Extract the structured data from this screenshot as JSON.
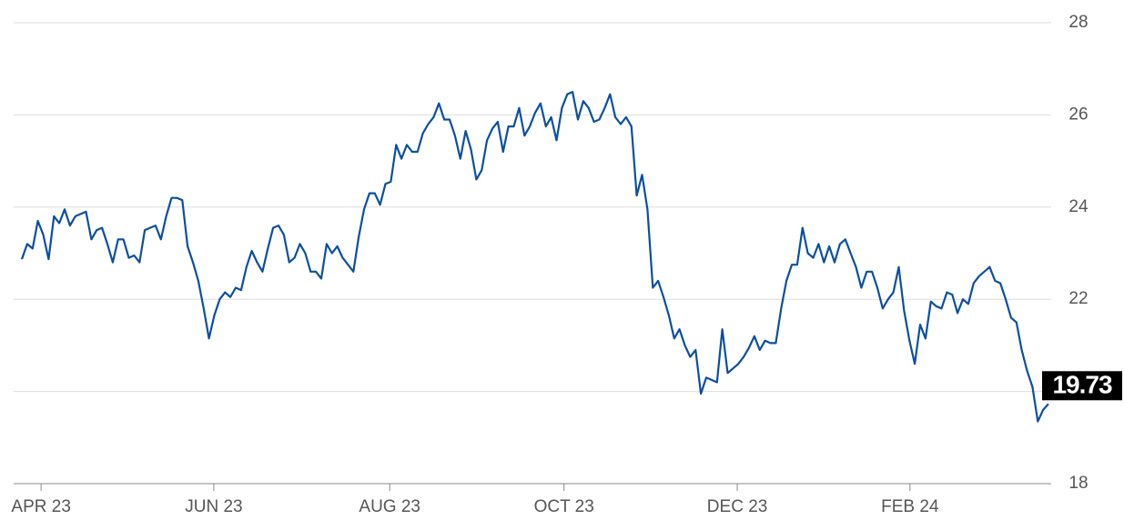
{
  "chart_data": {
    "type": "line",
    "color": "#0a4fa0",
    "values": [
      22.87,
      23.2,
      23.1,
      23.7,
      23.4,
      22.87,
      23.8,
      23.65,
      23.95,
      23.6,
      23.8,
      23.85,
      23.9,
      23.3,
      23.5,
      23.55,
      23.2,
      22.8,
      23.3,
      23.3,
      22.9,
      22.95,
      22.8,
      23.5,
      23.55,
      23.6,
      23.3,
      23.8,
      24.2,
      24.2,
      24.15,
      23.15,
      22.8,
      22.4,
      21.8,
      21.15,
      21.65,
      22.0,
      22.15,
      22.05,
      22.25,
      22.2,
      22.7,
      23.05,
      22.8,
      22.6,
      23.1,
      23.55,
      23.6,
      23.4,
      22.8,
      22.9,
      23.2,
      23.0,
      22.6,
      22.6,
      22.45,
      23.2,
      23.0,
      23.15,
      22.9,
      22.75,
      22.6,
      23.35,
      23.95,
      24.3,
      24.3,
      24.05,
      24.5,
      24.55,
      25.35,
      25.05,
      25.35,
      25.2,
      25.2,
      25.6,
      25.8,
      25.95,
      26.25,
      25.9,
      25.9,
      25.55,
      25.05,
      25.65,
      25.25,
      24.6,
      24.8,
      25.45,
      25.7,
      25.85,
      25.2,
      25.75,
      25.75,
      26.15,
      25.55,
      25.75,
      26.05,
      26.25,
      25.75,
      25.95,
      25.45,
      26.15,
      26.45,
      26.5,
      25.9,
      26.3,
      26.15,
      25.85,
      25.9,
      26.15,
      26.45,
      25.95,
      25.8,
      25.95,
      25.75,
      24.25,
      24.7,
      23.95,
      22.25,
      22.4,
      22.05,
      21.65,
      21.15,
      21.35,
      21.0,
      20.75,
      20.9,
      19.95,
      20.3,
      20.25,
      20.2,
      21.35,
      20.4,
      20.5,
      20.6,
      20.75,
      20.95,
      21.2,
      20.9,
      21.1,
      21.05,
      21.05,
      21.8,
      22.4,
      22.75,
      22.75,
      23.55,
      23.0,
      22.9,
      23.2,
      22.8,
      23.15,
      22.8,
      23.2,
      23.3,
      23.0,
      22.7,
      22.25,
      22.6,
      22.6,
      22.25,
      21.8,
      22.0,
      22.15,
      22.7,
      21.75,
      21.1,
      20.6,
      21.45,
      21.15,
      21.95,
      21.85,
      21.8,
      22.15,
      22.1,
      21.7,
      22.0,
      21.9,
      22.35,
      22.5,
      22.6,
      22.7,
      22.4,
      22.35,
      22.0,
      21.6,
      21.5,
      20.9,
      20.45,
      20.1,
      19.35,
      19.6,
      19.73
    ],
    "xlim": [
      0,
      192
    ],
    "xticks": [
      {
        "value": 3.6,
        "label": "APR 23"
      },
      {
        "value": 35.9,
        "label": "JUN 23"
      },
      {
        "value": 68.8,
        "label": "AUG 23"
      },
      {
        "value": 101.4,
        "label": "OCT 23"
      },
      {
        "value": 133.8,
        "label": "DEC 23"
      },
      {
        "value": 166.1,
        "label": "FEB 24"
      }
    ],
    "ylim": [
      18,
      28
    ],
    "yticks": [
      18,
      20,
      22,
      24,
      26,
      28
    ],
    "grid": true
  }
}
